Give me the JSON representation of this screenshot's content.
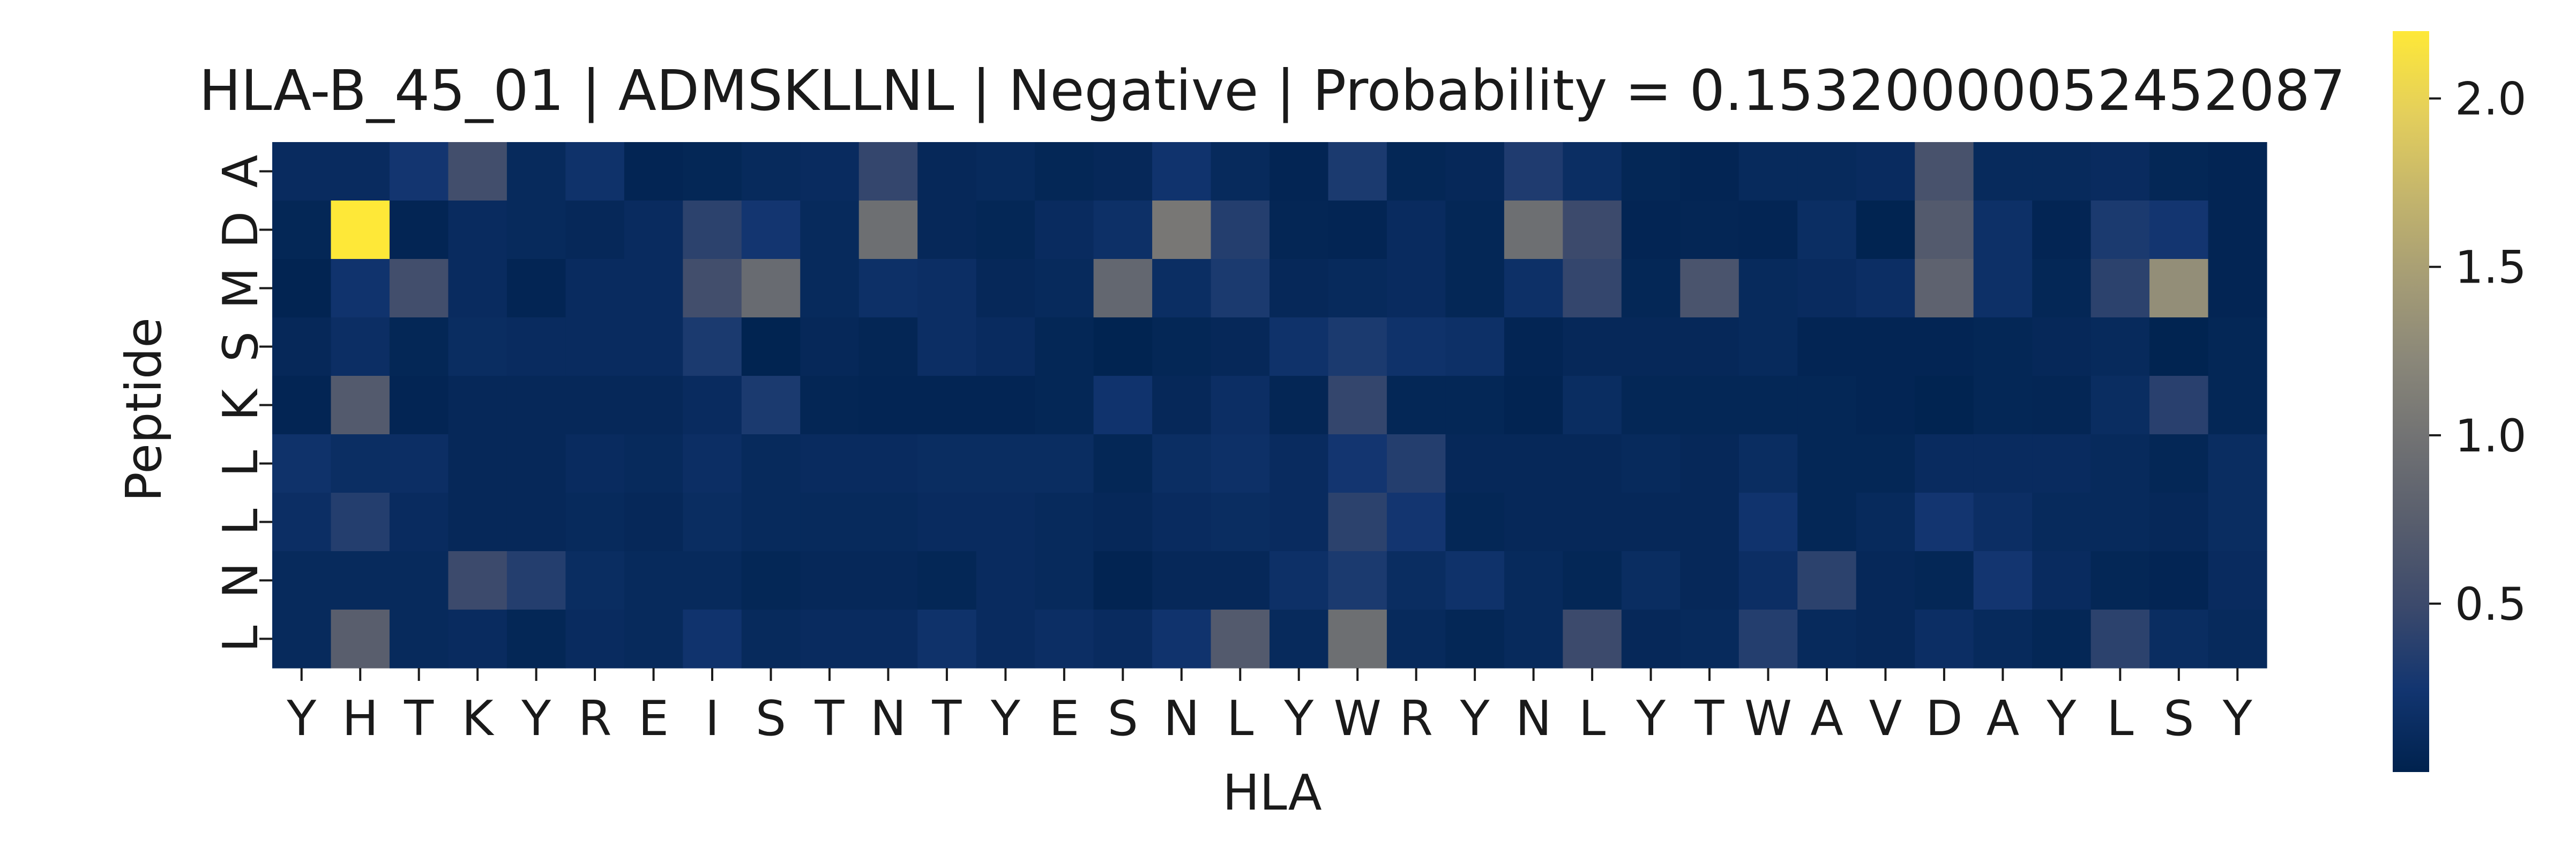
{
  "chart_data": {
    "type": "heatmap",
    "title": "HLA-B_45_01 | ADMSKLLNL | Negative | Probability = 0.15320000052452087",
    "xlabel": "HLA",
    "ylabel": "Peptide",
    "x_categories": [
      "Y",
      "H",
      "T",
      "K",
      "Y",
      "R",
      "E",
      "I",
      "S",
      "T",
      "N",
      "T",
      "Y",
      "E",
      "S",
      "N",
      "L",
      "Y",
      "W",
      "R",
      "Y",
      "N",
      "L",
      "Y",
      "T",
      "W",
      "A",
      "V",
      "D",
      "A",
      "Y",
      "L",
      "S",
      "Y"
    ],
    "y_categories": [
      "A",
      "D",
      "M",
      "S",
      "K",
      "L",
      "L",
      "N",
      "L"
    ],
    "values": [
      [
        0.12,
        0.12,
        0.25,
        0.55,
        0.1,
        0.2,
        0.04,
        0.06,
        0.1,
        0.12,
        0.45,
        0.08,
        0.1,
        0.06,
        0.08,
        0.22,
        0.1,
        0.04,
        0.3,
        0.06,
        0.08,
        0.32,
        0.15,
        0.06,
        0.04,
        0.1,
        0.1,
        0.12,
        0.6,
        0.1,
        0.1,
        0.12,
        0.06,
        0.04
      ],
      [
        0.06,
        2.2,
        0.04,
        0.12,
        0.1,
        0.08,
        0.12,
        0.4,
        0.25,
        0.1,
        0.95,
        0.08,
        0.06,
        0.12,
        0.18,
        1.05,
        0.35,
        0.05,
        0.04,
        0.12,
        0.06,
        0.95,
        0.5,
        0.04,
        0.05,
        0.04,
        0.15,
        0.02,
        0.7,
        0.18,
        0.04,
        0.3,
        0.25,
        0.04
      ],
      [
        0.03,
        0.22,
        0.55,
        0.12,
        0.04,
        0.12,
        0.12,
        0.55,
        0.9,
        0.1,
        0.18,
        0.16,
        0.08,
        0.1,
        0.85,
        0.15,
        0.3,
        0.08,
        0.1,
        0.12,
        0.06,
        0.18,
        0.45,
        0.06,
        0.62,
        0.1,
        0.12,
        0.16,
        0.8,
        0.18,
        0.06,
        0.4,
        1.3,
        0.04
      ],
      [
        0.08,
        0.16,
        0.06,
        0.14,
        0.12,
        0.12,
        0.12,
        0.3,
        0.02,
        0.08,
        0.05,
        0.16,
        0.12,
        0.06,
        0.02,
        0.06,
        0.08,
        0.2,
        0.3,
        0.2,
        0.18,
        0.04,
        0.08,
        0.08,
        0.08,
        0.1,
        0.04,
        0.04,
        0.04,
        0.06,
        0.08,
        0.1,
        0.02,
        0.06
      ],
      [
        0.04,
        0.7,
        0.04,
        0.08,
        0.08,
        0.08,
        0.08,
        0.12,
        0.3,
        0.05,
        0.04,
        0.04,
        0.04,
        0.06,
        0.22,
        0.08,
        0.16,
        0.05,
        0.45,
        0.06,
        0.06,
        0.03,
        0.14,
        0.06,
        0.06,
        0.06,
        0.06,
        0.04,
        0.02,
        0.06,
        0.05,
        0.14,
        0.38,
        0.06
      ],
      [
        0.2,
        0.15,
        0.16,
        0.08,
        0.08,
        0.12,
        0.1,
        0.16,
        0.1,
        0.12,
        0.12,
        0.14,
        0.14,
        0.14,
        0.06,
        0.15,
        0.18,
        0.12,
        0.25,
        0.35,
        0.08,
        0.08,
        0.08,
        0.1,
        0.08,
        0.14,
        0.06,
        0.06,
        0.12,
        0.12,
        0.12,
        0.1,
        0.06,
        0.14
      ],
      [
        0.16,
        0.35,
        0.12,
        0.08,
        0.08,
        0.1,
        0.08,
        0.14,
        0.1,
        0.1,
        0.1,
        0.12,
        0.12,
        0.1,
        0.08,
        0.12,
        0.14,
        0.12,
        0.4,
        0.25,
        0.06,
        0.08,
        0.08,
        0.08,
        0.08,
        0.22,
        0.06,
        0.1,
        0.25,
        0.16,
        0.1,
        0.1,
        0.08,
        0.14
      ],
      [
        0.1,
        0.1,
        0.1,
        0.5,
        0.35,
        0.14,
        0.1,
        0.1,
        0.06,
        0.08,
        0.08,
        0.06,
        0.12,
        0.1,
        0.03,
        0.08,
        0.08,
        0.18,
        0.3,
        0.14,
        0.2,
        0.1,
        0.06,
        0.14,
        0.08,
        0.16,
        0.4,
        0.08,
        0.06,
        0.25,
        0.12,
        0.06,
        0.04,
        0.12
      ],
      [
        0.1,
        0.75,
        0.1,
        0.12,
        0.06,
        0.12,
        0.1,
        0.22,
        0.1,
        0.12,
        0.12,
        0.2,
        0.12,
        0.16,
        0.12,
        0.22,
        0.7,
        0.1,
        0.95,
        0.1,
        0.06,
        0.1,
        0.5,
        0.08,
        0.1,
        0.35,
        0.1,
        0.08,
        0.16,
        0.1,
        0.06,
        0.4,
        0.14,
        0.1
      ]
    ],
    "vmin": 0.0,
    "vmax": 2.2,
    "colormap": "cividis",
    "colors": [
      "#00224e",
      "#123570",
      "#3b496c",
      "#575d6d",
      "#707173",
      "#8a8779",
      "#a69d75",
      "#c4b56c",
      "#e4cf5b",
      "#fee838"
    ],
    "colorbar": {
      "ticks": [
        0.5,
        1.0,
        1.5,
        2.0
      ],
      "tick_labels": [
        "0.5",
        "1.0",
        "1.5",
        "2.0"
      ]
    },
    "grid": false
  }
}
